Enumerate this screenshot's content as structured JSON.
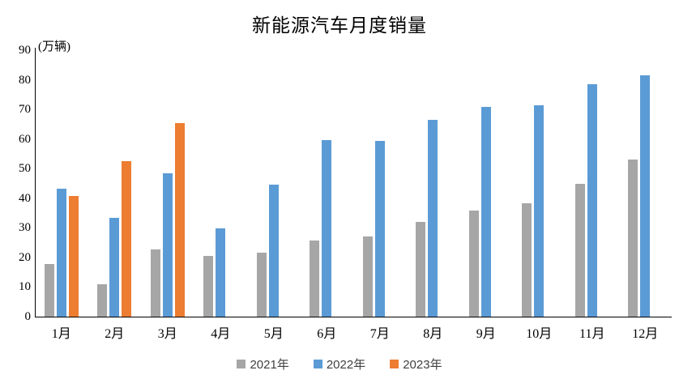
{
  "chart_data": {
    "type": "bar",
    "title": "新能源汽车月度销量",
    "ylabel": "(万辆)",
    "xlabel": "",
    "categories": [
      "1月",
      "2月",
      "3月",
      "4月",
      "5月",
      "6月",
      "7月",
      "8月",
      "9月",
      "10月",
      "11月",
      "12月"
    ],
    "series": [
      {
        "name": "2021年",
        "color": "#A6A6A6",
        "values": [
          17.9,
          11.0,
          22.6,
          20.6,
          21.7,
          25.6,
          27.1,
          32.1,
          35.7,
          38.3,
          45.0,
          53.1
        ]
      },
      {
        "name": "2022年",
        "color": "#5B9BD5",
        "values": [
          43.1,
          33.4,
          48.4,
          29.9,
          44.7,
          59.6,
          59.3,
          66.6,
          70.8,
          71.4,
          78.6,
          81.4
        ]
      },
      {
        "name": "2023年",
        "color": "#ED7D31",
        "values": [
          40.8,
          52.5,
          65.3,
          null,
          null,
          null,
          null,
          null,
          null,
          null,
          null,
          null
        ]
      }
    ],
    "ylim": [
      0,
      90
    ],
    "ytick_step": 10,
    "grid": false,
    "legend_position": "bottom"
  }
}
